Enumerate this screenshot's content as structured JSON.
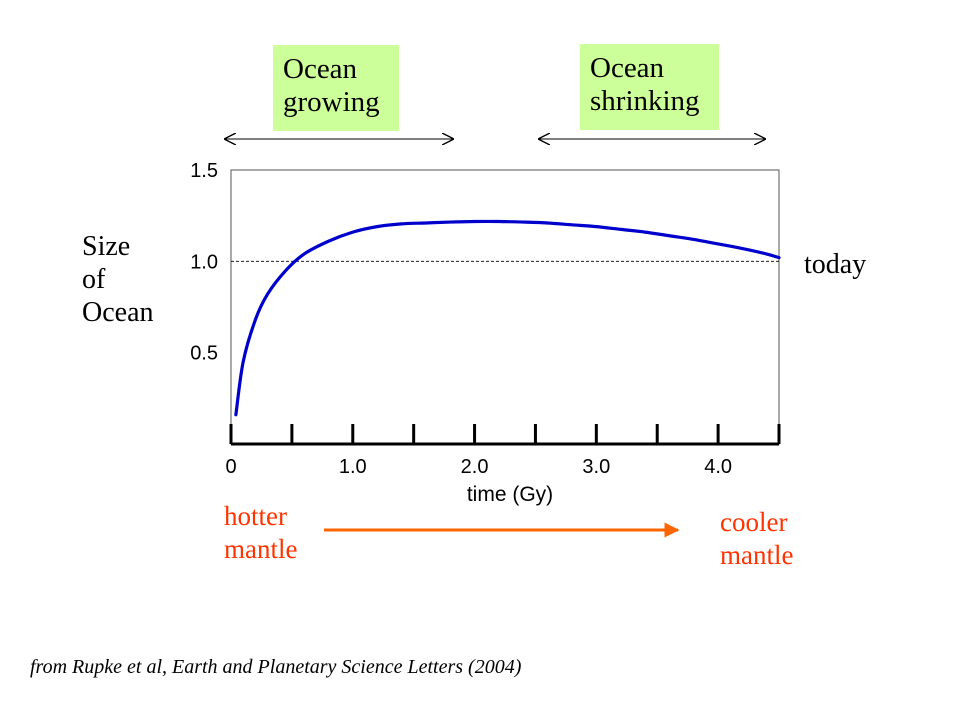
{
  "chart_data": {
    "type": "line",
    "title": "",
    "xlabel": "time (Gy)",
    "ylabel": "Size of Ocean",
    "xlim": [
      0,
      4.5
    ],
    "ylim": [
      0,
      1.5
    ],
    "x_ticks": [
      0,
      0.5,
      1.0,
      1.5,
      2.0,
      2.5,
      3.0,
      3.5,
      4.0,
      4.5
    ],
    "x_tick_labels": [
      {
        "value": 0,
        "label": "0"
      },
      {
        "value": 1.0,
        "label": "1.0"
      },
      {
        "value": 2.0,
        "label": "2.0"
      },
      {
        "value": 3.0,
        "label": "3.0"
      },
      {
        "value": 4.0,
        "label": "4.0"
      }
    ],
    "y_tick_labels": [
      {
        "value": 0.5,
        "label": "0.5"
      },
      {
        "value": 1.0,
        "label": "1.0"
      },
      {
        "value": 1.5,
        "label": "1.5"
      }
    ],
    "reference_line": {
      "y": 1.0,
      "style": "dashed"
    },
    "series": [
      {
        "color": "#0000cc",
        "x": [
          0.04,
          0.1,
          0.2,
          0.3,
          0.45,
          0.6,
          0.8,
          1.0,
          1.2,
          1.4,
          1.6,
          1.8,
          2.0,
          2.2,
          2.4,
          2.6,
          2.8,
          3.0,
          3.2,
          3.4,
          3.6,
          3.8,
          4.0,
          4.2,
          4.4,
          4.5
        ],
        "y": [
          0.16,
          0.45,
          0.68,
          0.82,
          0.95,
          1.04,
          1.11,
          1.16,
          1.19,
          1.205,
          1.21,
          1.215,
          1.218,
          1.218,
          1.215,
          1.21,
          1.2,
          1.19,
          1.175,
          1.16,
          1.14,
          1.12,
          1.095,
          1.07,
          1.04,
          1.02
        ]
      }
    ]
  },
  "annotations": {
    "phase_growing": "Ocean growing",
    "phase_growing_line1": "Ocean",
    "phase_growing_line2": "growing",
    "phase_shrinking_line1": "Ocean",
    "phase_shrinking_line2": "shrinking",
    "ylabel_line1": "Size",
    "ylabel_line2": "of",
    "ylabel_line3": "Ocean",
    "today": "today",
    "hotter_line1": "hotter",
    "hotter_line2": "mantle",
    "cooler_line1": "cooler",
    "cooler_line2": "mantle",
    "source": "from Rupke et al, Earth and Planetary Science Letters (2004)"
  },
  "colors": {
    "curve": "#0000cc",
    "phase_box": "#ccff99",
    "mantle_text": "#ff3300",
    "mantle_arrow": "#ff6600"
  }
}
